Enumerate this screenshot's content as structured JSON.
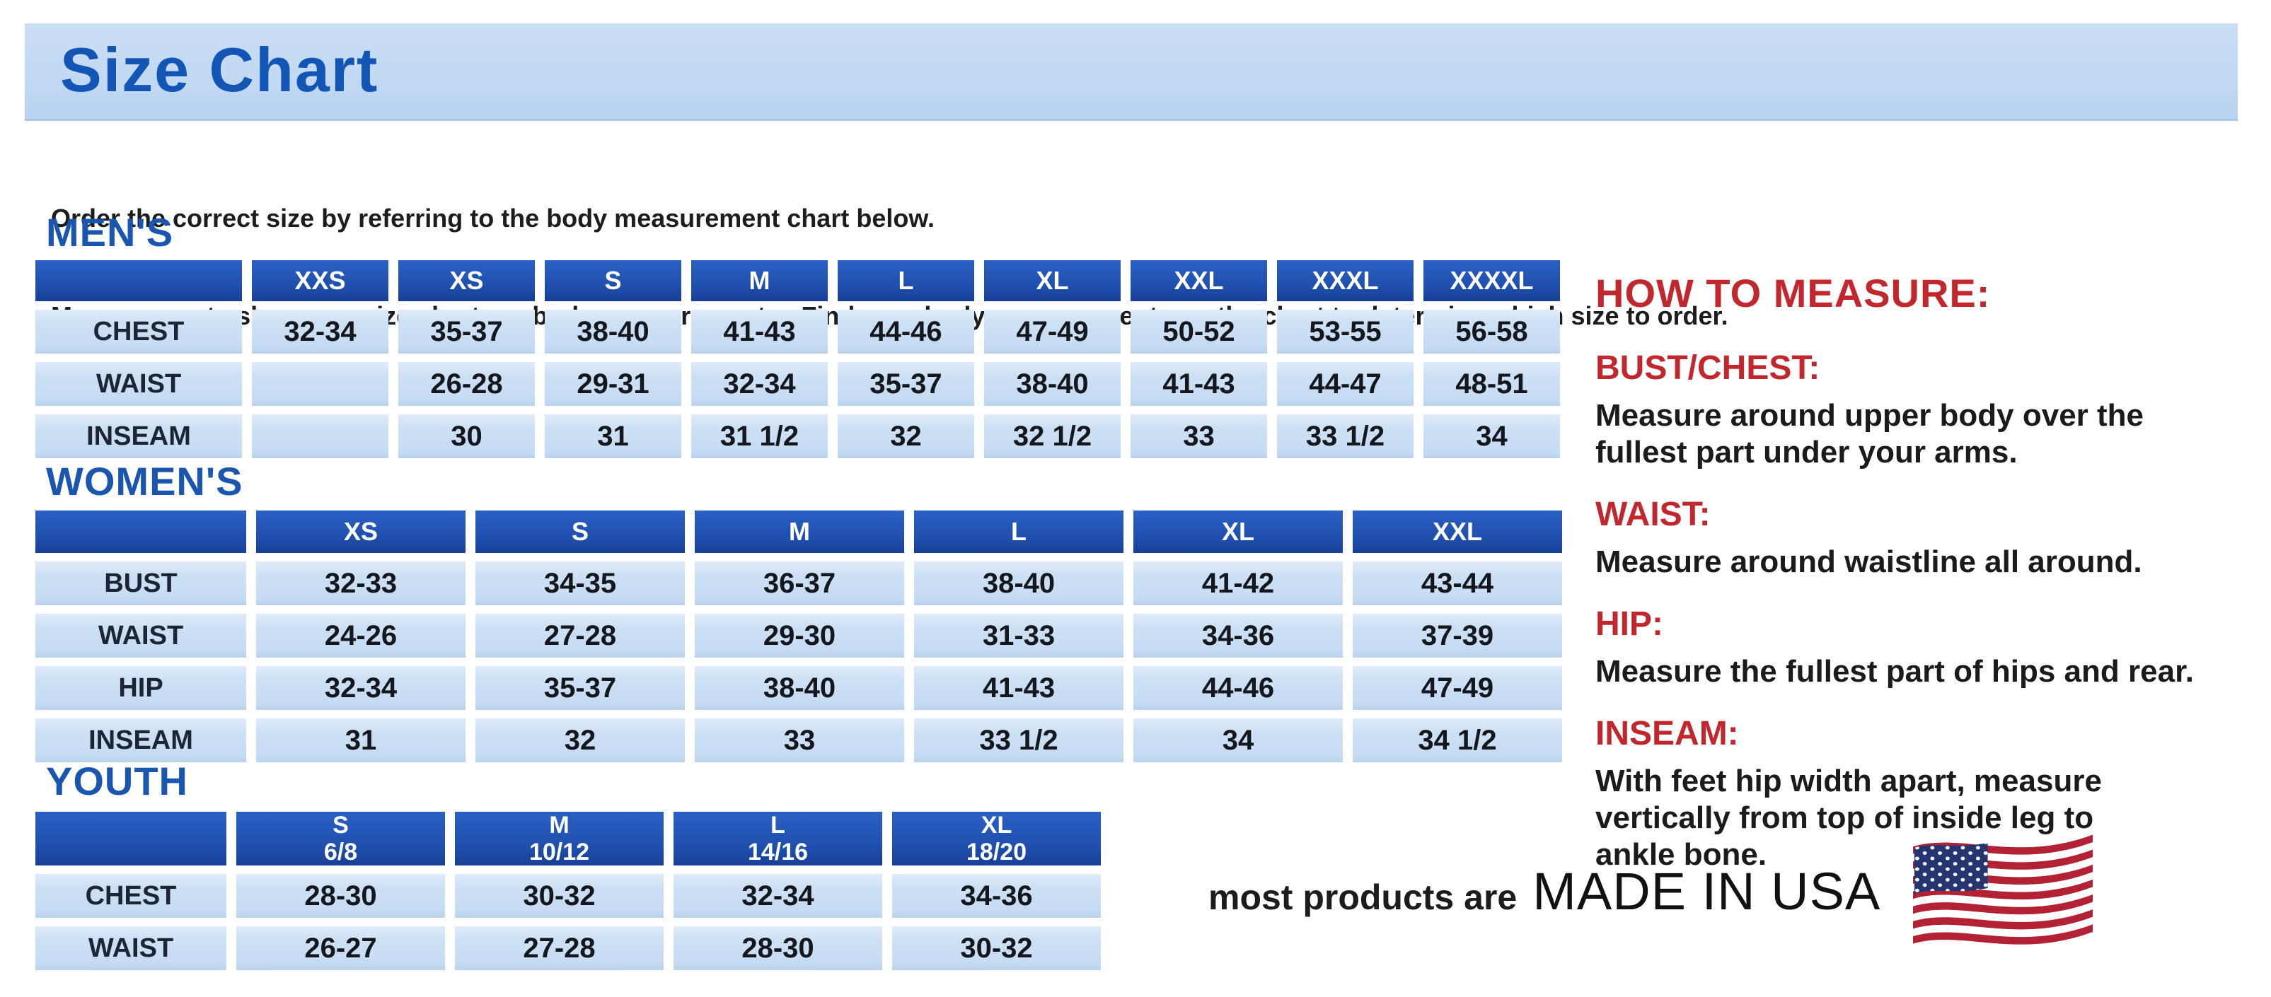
{
  "page": {
    "title": "Size Chart",
    "intro_line1": "Order the correct size by referring to the body measurement chart below.",
    "intro_line2": "Measurements shown on size chart are body measurements.  Find your body measurements on the chart to determine which size to order."
  },
  "tables": {
    "mens": {
      "heading": "MEN'S",
      "columns": [
        "",
        "XXS",
        "XS",
        "S",
        "M",
        "L",
        "XL",
        "XXL",
        "XXXL",
        "XXXXL"
      ],
      "rows": [
        {
          "label": "CHEST",
          "values": [
            "32-34",
            "35-37",
            "38-40",
            "41-43",
            "44-46",
            "47-49",
            "50-52",
            "53-55",
            "56-58"
          ]
        },
        {
          "label": "WAIST",
          "values": [
            "",
            "26-28",
            "29-31",
            "32-34",
            "35-37",
            "38-40",
            "41-43",
            "44-47",
            "48-51"
          ]
        },
        {
          "label": "INSEAM",
          "values": [
            "",
            "30",
            "31",
            "31 1/2",
            "32",
            "32 1/2",
            "33",
            "33 1/2",
            "34"
          ]
        }
      ]
    },
    "womens": {
      "heading": "WOMEN'S",
      "columns": [
        "",
        "XS",
        "S",
        "M",
        "L",
        "XL",
        "XXL"
      ],
      "rows": [
        {
          "label": "BUST",
          "values": [
            "32-33",
            "34-35",
            "36-37",
            "38-40",
            "41-42",
            "43-44"
          ]
        },
        {
          "label": "WAIST",
          "values": [
            "24-26",
            "27-28",
            "29-30",
            "31-33",
            "34-36",
            "37-39"
          ]
        },
        {
          "label": "HIP",
          "values": [
            "32-34",
            "35-37",
            "38-40",
            "41-43",
            "44-46",
            "47-49"
          ]
        },
        {
          "label": "INSEAM",
          "values": [
            "31",
            "32",
            "33",
            "33 1/2",
            "34",
            "34 1/2"
          ]
        }
      ]
    },
    "youth": {
      "heading": "YOUTH",
      "columns": [
        "",
        {
          "top": "S",
          "bottom": "6/8"
        },
        {
          "top": "M",
          "bottom": "10/12"
        },
        {
          "top": "L",
          "bottom": "14/16"
        },
        {
          "top": "XL",
          "bottom": "18/20"
        }
      ],
      "rows": [
        {
          "label": "CHEST",
          "values": [
            "28-30",
            "30-32",
            "32-34",
            "34-36"
          ]
        },
        {
          "label": "WAIST",
          "values": [
            "26-27",
            "27-28",
            "28-30",
            "30-32"
          ]
        }
      ]
    }
  },
  "how_to_measure": {
    "heading": "HOW TO MEASURE:",
    "items": [
      {
        "label": "BUST/CHEST:",
        "text": "Measure around upper body over the\nfullest part under your arms."
      },
      {
        "label": "WAIST:",
        "text": "Measure around waistline all around."
      },
      {
        "label": "HIP:",
        "text": "Measure the fullest part of hips and rear."
      },
      {
        "label": "INSEAM:",
        "text": "With feet hip width apart, measure\nvertically from top of inside leg to\nankle bone."
      }
    ]
  },
  "footer": {
    "prefix": "most products are",
    "emphasis": "MADE IN USA",
    "flag_icon": "us-flag-icon"
  },
  "colors": {
    "banner_background": "#c2d9f3",
    "header_blue": "#1f4fae",
    "cell_blue": "#c6dcf4",
    "heading_blue": "#1355b4",
    "accent_red": "#c1272d",
    "text_black": "#1d1d1d",
    "flag_red": "#b22234",
    "flag_blue": "#24356f"
  }
}
